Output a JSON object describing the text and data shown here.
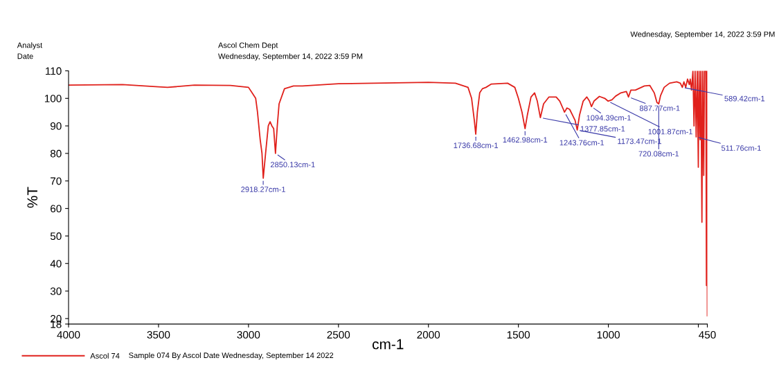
{
  "chart_data": {
    "type": "line",
    "xlabel": "cm-1",
    "ylabel": "%T",
    "xlim": [
      4000,
      450
    ],
    "ylim": [
      18,
      110
    ],
    "xticks": [
      4000,
      3500,
      3000,
      2500,
      2000,
      1500,
      1000,
      {
        "value": 500,
        "label": null
      },
      450
    ],
    "yticks": [
      18,
      20,
      30,
      40,
      50,
      60,
      70,
      80,
      90,
      100,
      110
    ],
    "grid": false,
    "legend": "bottom left",
    "marker": "none",
    "line_style": "solid",
    "series": [
      {
        "name": "Ascol 74",
        "color": "#e0201b",
        "x": [
          4000,
          3700,
          3500,
          3450,
          3300,
          3100,
          3000,
          2980,
          2960,
          2950,
          2935,
          2925,
          2918,
          2905,
          2890,
          2880,
          2870,
          2860,
          2850,
          2840,
          2830,
          2800,
          2750,
          2700,
          2500,
          2000,
          1850,
          1780,
          1760,
          1745,
          1737,
          1728,
          1715,
          1700,
          1680,
          1650,
          1560,
          1520,
          1500,
          1480,
          1463,
          1450,
          1430,
          1410,
          1395,
          1378,
          1360,
          1330,
          1290,
          1270,
          1250,
          1244,
          1230,
          1215,
          1200,
          1185,
          1173,
          1160,
          1140,
          1120,
          1105,
          1094,
          1080,
          1050,
          1020,
          1002,
          980,
          960,
          930,
          900,
          888,
          875,
          850,
          800,
          770,
          745,
          730,
          720,
          710,
          690,
          660,
          620,
          600,
          589,
          580,
          570,
          560,
          550,
          545,
          538,
          530,
          524,
          518,
          512,
          506,
          500,
          496,
          490,
          486,
          480,
          476,
          470,
          466,
          458,
          455,
          452,
          450
        ],
        "values": [
          104.8,
          105,
          104.2,
          104,
          104.8,
          104.7,
          104,
          102,
          100,
          95,
          85,
          80,
          71,
          80,
          90,
          91.5,
          90,
          89,
          80,
          90,
          98,
          103.5,
          104.5,
          104.5,
          105.3,
          105.8,
          105.5,
          104,
          100,
          92,
          87,
          95,
          102,
          103.5,
          104,
          105.2,
          105.5,
          104,
          100,
          95,
          89,
          94,
          100.5,
          102,
          99,
          93,
          98,
          100.5,
          100.5,
          99,
          96,
          95,
          96.5,
          96,
          94,
          92,
          88.5,
          94,
          99,
          100.5,
          99,
          97,
          99,
          100.7,
          100,
          99,
          99.5,
          100.8,
          102,
          102.5,
          100.5,
          103,
          103,
          104.5,
          104.7,
          102,
          98.5,
          98,
          101,
          104,
          105.5,
          106,
          105.5,
          104,
          106,
          104,
          107,
          105,
          107,
          103,
          110,
          90,
          110,
          86,
          110,
          75,
          110,
          85,
          110,
          55,
          110,
          72,
          110,
          110,
          32,
          110,
          21
        ]
      }
    ],
    "annotations": [
      {
        "text": "2918.27cm-1",
        "x": 2918.27,
        "y": 71
      },
      {
        "text": "2850.13cm-1",
        "x": 2850.13,
        "y": 80
      },
      {
        "text": "1736.68cm-1",
        "x": 1736.68,
        "y": 87
      },
      {
        "text": "1462.98cm-1",
        "x": 1462.98,
        "y": 89
      },
      {
        "text": "1377.85cm-1",
        "x": 1377.85,
        "y": 93
      },
      {
        "text": "1243.76cm-1",
        "x": 1243.76,
        "y": 95
      },
      {
        "text": "1173.47cm-1",
        "x": 1173.47,
        "y": 88.5
      },
      {
        "text": "1094.39cm-1",
        "x": 1094.39,
        "y": 97
      },
      {
        "text": "1001.87cm-1",
        "x": 1001.87,
        "y": 99
      },
      {
        "text": "887.77cm-1",
        "x": 887.77,
        "y": 100.5
      },
      {
        "text": "720.08cm-1",
        "x": 720.08,
        "y": 98
      },
      {
        "text": "589.42cm-1",
        "x": 589.42,
        "y": 104
      },
      {
        "text": "511.76cm-1",
        "x": 511.76,
        "y": 86
      },
      "Analyst",
      "Date",
      "Ascol Chem Dept",
      "Wednesday, September 14, 2022 3:59 PM",
      "Wednesday, September 14, 2022 3:59 PM",
      "Sample 074 By Ascol Date Wednesday, September 14 2022"
    ]
  }
}
